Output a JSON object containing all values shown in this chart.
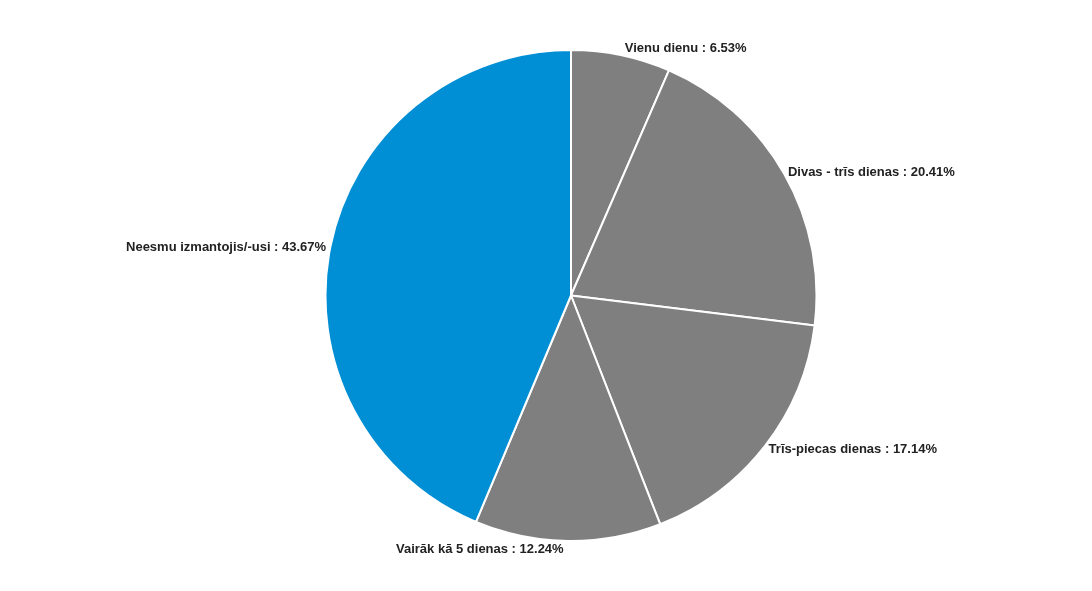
{
  "chart_data": {
    "type": "pie",
    "categories": [
      "Vienu dienu",
      "Divas - trīs dienas",
      "Trīs-piecas dienas",
      "Vairāk kā 5 dienas",
      "Neesmu izmantojis/-usi"
    ],
    "values": [
      6.53,
      20.41,
      17.14,
      12.24,
      43.67
    ],
    "value_labels": [
      "6.53%",
      "20.41%",
      "17.14%",
      "12.24%",
      "43.67%"
    ],
    "colors": [
      "#7f7f7f",
      "#7f7f7f",
      "#7f7f7f",
      "#7f7f7f",
      "#008fd5"
    ],
    "legend": false
  }
}
